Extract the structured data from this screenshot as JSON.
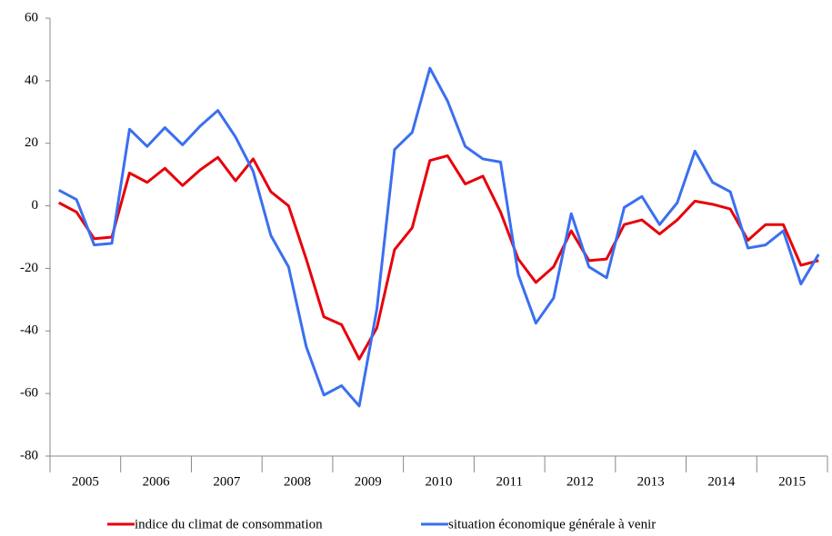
{
  "chart_data": {
    "type": "line",
    "categories": [
      null,
      "2005",
      null,
      null,
      null,
      "2006",
      null,
      null,
      null,
      "2007",
      null,
      null,
      null,
      "2008",
      null,
      null,
      null,
      "2009",
      null,
      null,
      null,
      "2010",
      null,
      null,
      null,
      "2011",
      null,
      null,
      null,
      "2012",
      null,
      null,
      null,
      "2013",
      null,
      null,
      null,
      "2014",
      null,
      null,
      null,
      "2015",
      null,
      null
    ],
    "series": [
      {
        "name": "indice du climat de consommation",
        "color": "#e8000b",
        "values": [
          1,
          -2,
          -10.5,
          -10,
          10.5,
          7.5,
          12,
          6.5,
          11.5,
          15.5,
          8,
          15,
          4.5,
          0,
          -17,
          -35.5,
          -38,
          -49,
          -39,
          -14,
          -7,
          14.5,
          16,
          7,
          9.5,
          -2,
          -17,
          -24.5,
          -19.5,
          -8,
          -17.5,
          -17,
          -6,
          -4.5,
          -9,
          -4.5,
          1.5,
          0.5,
          -1,
          -11,
          -6,
          -6,
          -19,
          -17.5
        ]
      },
      {
        "name": "situation économique générale à venir",
        "color": "#3a6ff0",
        "values": [
          5,
          2,
          -12.5,
          -12,
          24.5,
          19,
          25,
          19.5,
          25.5,
          30.5,
          22,
          11,
          -9.5,
          -19.5,
          -45,
          -60.5,
          -57.5,
          -64,
          -33,
          18,
          23.5,
          44,
          33.5,
          19,
          15,
          14,
          -22,
          -37.5,
          -29.5,
          -2.5,
          -19.5,
          -23,
          -0.5,
          3,
          -6,
          1,
          17.5,
          7.5,
          4.5,
          -13.5,
          -12.5,
          -8,
          -25,
          -15.5
        ]
      }
    ],
    "ylim": [
      -80,
      60
    ],
    "yticks": [
      -80,
      -60,
      -40,
      -20,
      0,
      20,
      40,
      60
    ],
    "grid": false,
    "legend": "bottom"
  }
}
